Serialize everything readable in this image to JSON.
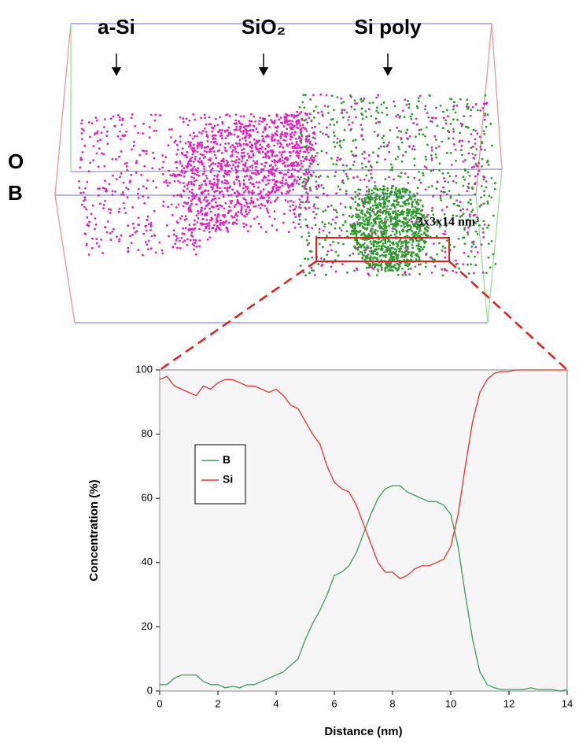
{
  "atom_map": {
    "labels": [
      "a-Si",
      "SiO₂",
      "Si poly"
    ],
    "legend": [
      {
        "text": "O",
        "color": "#e020c0"
      },
      {
        "text": "B",
        "color": "#2e9a2e"
      }
    ],
    "box_label": "3x3x14 nm³"
  },
  "chart_data": {
    "type": "line",
    "xlabel": "Distance (nm)",
    "ylabel": "Concentration (%)",
    "xlim": [
      0,
      14
    ],
    "ylim": [
      0,
      100
    ],
    "xticks": [
      0,
      2,
      4,
      6,
      8,
      10,
      12,
      14
    ],
    "yticks": [
      0,
      20,
      40,
      60,
      80,
      100
    ],
    "x": [
      0,
      0.25,
      0.5,
      0.75,
      1,
      1.25,
      1.5,
      1.75,
      2,
      2.25,
      2.5,
      2.75,
      3,
      3.25,
      3.5,
      3.75,
      4,
      4.25,
      4.5,
      4.75,
      5,
      5.25,
      5.5,
      5.75,
      6,
      6.25,
      6.5,
      6.75,
      7,
      7.25,
      7.5,
      7.75,
      8,
      8.25,
      8.5,
      8.75,
      9,
      9.25,
      9.5,
      9.75,
      10,
      10.25,
      10.5,
      10.75,
      11,
      11.25,
      11.5,
      11.75,
      12,
      12.25,
      12.5,
      12.75,
      13,
      13.25,
      13.5,
      13.75,
      14
    ],
    "series": [
      {
        "name": "B",
        "color": "#3a9a5c",
        "values": [
          2,
          2,
          4,
          5,
          5,
          5,
          3,
          2,
          2,
          1,
          1.5,
          1,
          2,
          2,
          3,
          4,
          5,
          6,
          8,
          10,
          16,
          21,
          25,
          30,
          36,
          37,
          39,
          43,
          49,
          55,
          60,
          63,
          64,
          64,
          62,
          61,
          60,
          59,
          59,
          58,
          55,
          45,
          30,
          16,
          6,
          2,
          1,
          0.5,
          0.5,
          0.5,
          0.5,
          1,
          0.5,
          0.5,
          0.5,
          0,
          0.5
        ]
      },
      {
        "name": "Si",
        "color": "#e8302c",
        "values": [
          97,
          98,
          95,
          94,
          93,
          92,
          95,
          94,
          96,
          97,
          97,
          96,
          95,
          95,
          94,
          93,
          94,
          92,
          89,
          88,
          84,
          80,
          77,
          70,
          65,
          63,
          62,
          58,
          52,
          46,
          40,
          37,
          37,
          35,
          36,
          38,
          39,
          39,
          40,
          41,
          45,
          55,
          70,
          84,
          93,
          97,
          99,
          99.5,
          99.5,
          100,
          100,
          100,
          100,
          100,
          100,
          100,
          100
        ]
      }
    ]
  }
}
